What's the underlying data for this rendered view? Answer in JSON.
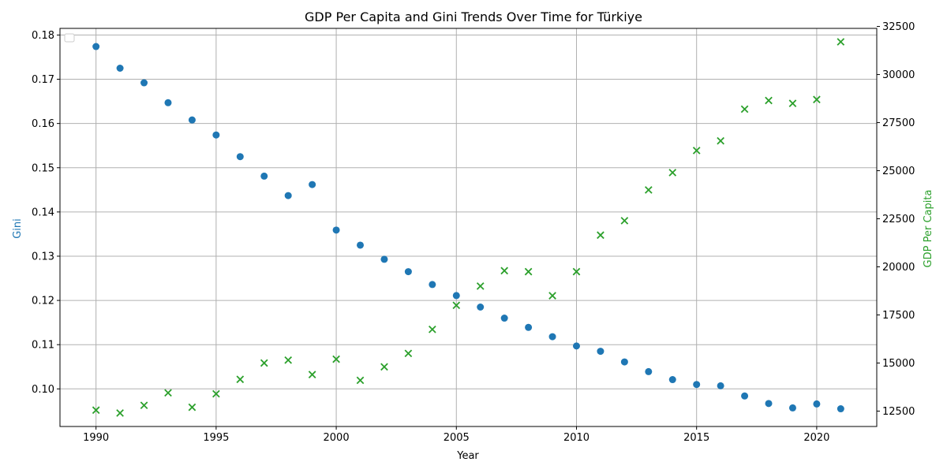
{
  "chart_data": {
    "type": "scatter",
    "title": "GDP Per Capita and Gini Trends Over Time for Türkiye",
    "xlabel": "Year",
    "ylabel_left": "Gini",
    "ylabel_right": "GDP Per Capita",
    "xlim": [
      1988.5,
      2022.5
    ],
    "ylim_left": [
      0.0915,
      0.1815
    ],
    "ylim_right": [
      11700,
      32400
    ],
    "x_ticks": [
      "1990",
      "1995",
      "2000",
      "2005",
      "2010",
      "2015",
      "2020"
    ],
    "y_left_ticks": [
      "0.10",
      "0.11",
      "0.12",
      "0.13",
      "0.14",
      "0.15",
      "0.16",
      "0.17",
      "0.18"
    ],
    "y_right_ticks": [
      "12500",
      "15000",
      "17500",
      "20000",
      "22500",
      "25000",
      "27500",
      "30000",
      "32500"
    ],
    "grid": true,
    "legend": "top-left (empty)",
    "colors": {
      "gini": "#1f77b4",
      "gdp": "#2ca02c"
    },
    "series": [
      {
        "axis": "left",
        "marker": "circle",
        "x": [
          1990,
          1991,
          1992,
          1993,
          1994,
          1995,
          1996,
          1997,
          1998,
          1999,
          2000,
          2001,
          2002,
          2003,
          2004,
          2005,
          2006,
          2007,
          2008,
          2009,
          2010,
          2011,
          2012,
          2013,
          2014,
          2015,
          2016,
          2017,
          2018,
          2019,
          2020,
          2021
        ],
        "values": [
          0.1774,
          0.1725,
          0.1692,
          0.1647,
          0.1608,
          0.1574,
          0.1525,
          0.1481,
          0.1437,
          0.1462,
          0.1359,
          0.1325,
          0.1293,
          0.1265,
          0.1236,
          0.1211,
          0.1185,
          0.116,
          0.1139,
          0.1118,
          0.1097,
          0.1085,
          0.1061,
          0.1039,
          0.1021,
          0.101,
          0.1007,
          0.0984,
          0.0967,
          0.0957,
          0.0966,
          0.0955
        ]
      },
      {
        "axis": "right",
        "marker": "x",
        "x": [
          1990,
          1991,
          1992,
          1993,
          1994,
          1995,
          1996,
          1997,
          1998,
          1999,
          2000,
          2001,
          2002,
          2003,
          2004,
          2005,
          2006,
          2007,
          2008,
          2009,
          2010,
          2011,
          2012,
          2013,
          2014,
          2015,
          2016,
          2017,
          2018,
          2019,
          2020,
          2021
        ],
        "values": [
          12550,
          12400,
          12800,
          13450,
          12700,
          13400,
          14150,
          15000,
          15150,
          14400,
          15200,
          14100,
          14800,
          15500,
          16750,
          18000,
          19000,
          19800,
          19750,
          18500,
          19750,
          21650,
          22400,
          24000,
          24900,
          26050,
          26550,
          28200,
          28650,
          28500,
          28700,
          31700
        ]
      }
    ]
  }
}
